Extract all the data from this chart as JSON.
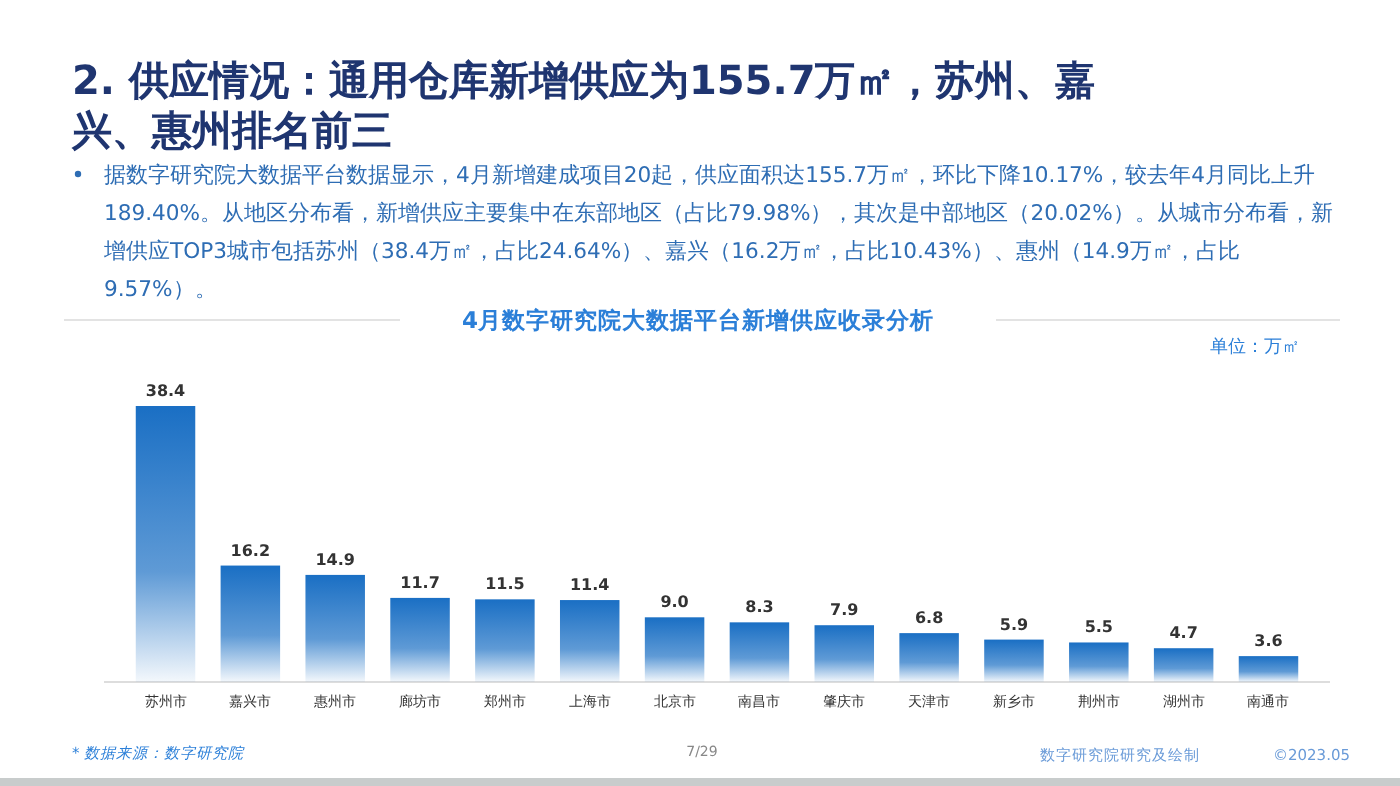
{
  "chart_data": {
    "type": "bar",
    "title": "2. 供应情况：通用仓库新增供应为155.7万㎡，苏州、嘉兴、惠州排名前三",
    "subtitle": "据数字研究院大数据平台数据显示，4月新增建成项目20起，供应面积达155.7万㎡，环比下降10.17%，较去年4月同比上升189.40%。从地区分布看，新增供应主要集中在东部地区（占比79.98%），其次是中部地区（20.02%）。从城市分布看，新增供应TOP3城市包括苏州（38.4万㎡，占比24.64%）、嘉兴（16.2万㎡，占比10.43%）、惠州（14.9万㎡，占比9.57%）。",
    "xlabel": "4月数字研究院大数据平台新增供应收录分析",
    "ylabel": "单位：万㎡",
    "categories": [
      "苏州市",
      "嘉兴市",
      "惠州市",
      "廊坊市",
      "郑州市",
      "上海市",
      "北京市",
      "南昌市",
      "肇庆市",
      "天津市",
      "新乡市",
      "荆州市",
      "湖州市",
      "南通市"
    ],
    "values": [
      38.4,
      16.2,
      14.9,
      11.7,
      11.5,
      11.4,
      9.0,
      8.3,
      7.9,
      6.8,
      5.9,
      5.5,
      4.7,
      3.6
    ],
    "value_labels": [
      "38.4",
      "16.2",
      "14.9",
      "11.7",
      "11.5",
      "11.4",
      "9.0",
      "8.3",
      "7.9",
      "6.8",
      "5.9",
      "5.5",
      "4.7",
      "3.6"
    ],
    "color": "#1a6fc4",
    "annotations": [
      "* 数据来源：数字研究院",
      "7/29",
      "数字研究院研究及绘制",
      "©2023.05"
    ]
  }
}
